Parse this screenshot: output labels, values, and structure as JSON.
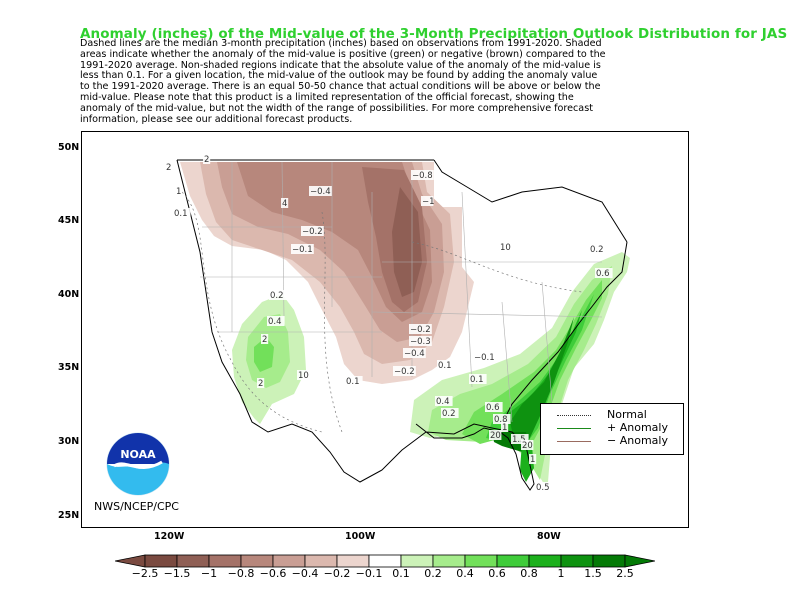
{
  "title": "Anomaly (inches) of the Mid-value of the 3-Month Precipitation Outlook Distribution for JAS 2025",
  "description": "Dashed lines are the median 3-month precipitation (inches) based on observations from 1991-2020.  Shaded\nareas indicate whether the anomaly of the mid-value is positive (green) or negative (brown) compared to the\n1991-2020 average.   Non-shaded regions indicate that the absolute value of the anomaly of the mid-value is\nless than 0.1.   For a given location, the mid-value of the outlook may be found by adding the anomaly value\nto the 1991-2020 average. There is an equal 50-50 chance that actual conditions will be above or below the\nmid-value. Please note that this product is a limited representation of the official forecast, showing the\nanomaly of the mid-value, but not the width of the range of possibilities. For more comprehensive forecast\ninformation, please see our additional forecast products.",
  "latitude_labels": [
    "50N",
    "45N",
    "40N",
    "35N",
    "30N",
    "25N"
  ],
  "longitude_labels": [
    "120W",
    "100W",
    "80W"
  ],
  "legend": {
    "normal": "Normal",
    "plus": "+ Anomaly",
    "minus": "− Anomaly"
  },
  "credit": "NWS/NCEP/CPC",
  "logo_text": "NOAA",
  "colorbar": {
    "labels": [
      "−2.5",
      "−1.5",
      "−1",
      "−0.8",
      "−0.6",
      "−0.4",
      "−0.2",
      "−0.1",
      "0.1",
      "0.2",
      "0.4",
      "0.6",
      "0.8",
      "1",
      "1.5",
      "2.5"
    ],
    "colors": [
      "#7a4a40",
      "#8f5f55",
      "#a47268",
      "#b7877c",
      "#c99e94",
      "#dbb8ae",
      "#ecd5ce",
      "#ffffff",
      "#ccf2b8",
      "#a6ec8c",
      "#72e05a",
      "#3fcc3a",
      "#1cb01c",
      "#0e9210",
      "#047a06"
    ]
  },
  "contour_labels": [
    "2",
    "2",
    "1",
    "0.1",
    "4",
    "−0.4",
    "−0.2",
    "−0.1",
    "−0.8",
    "−1",
    "10",
    "−0.2",
    "−0.3",
    "−0.4",
    "−0.2",
    "0.1",
    "0.2",
    "0.4",
    "2",
    "2",
    "10",
    "0.1",
    "−0.1",
    "0.1",
    "0.2",
    "0.4",
    "0.6",
    "0.8",
    "1",
    "20",
    "1.5",
    "20",
    "1",
    "0.5",
    "0.2",
    "0.6"
  ],
  "colors": {
    "title": "#2fd02f",
    "positive_line": "#1a8a1a",
    "negative_line": "#9a6b60"
  }
}
